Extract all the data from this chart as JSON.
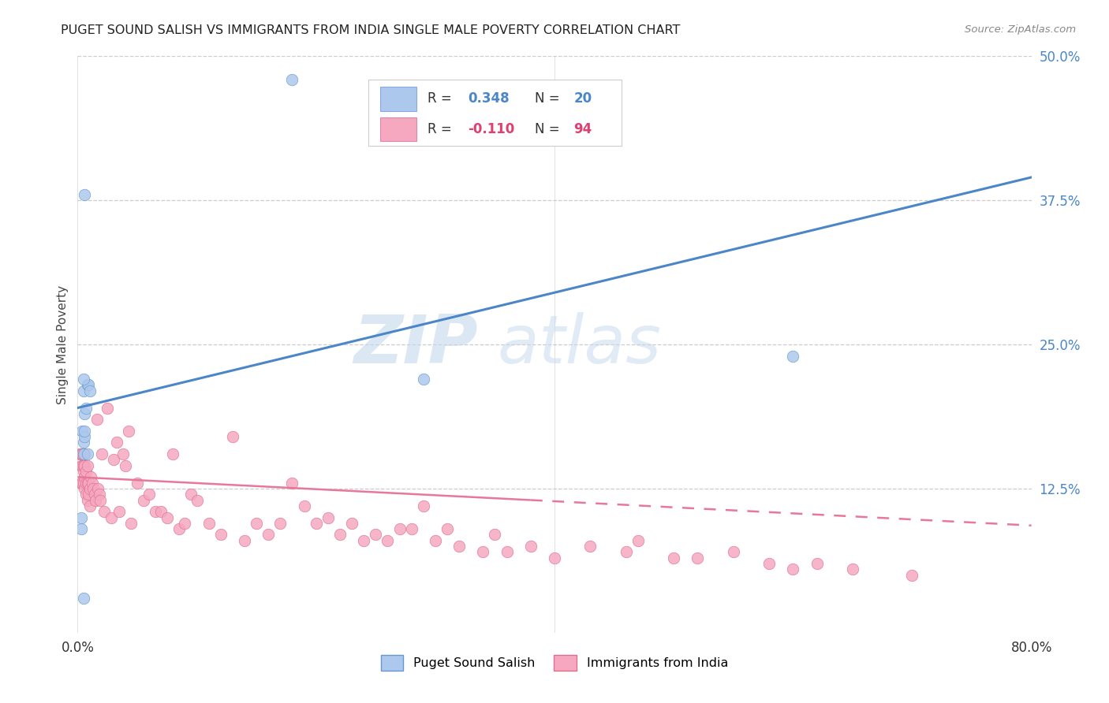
{
  "title": "PUGET SOUND SALISH VS IMMIGRANTS FROM INDIA SINGLE MALE POVERTY CORRELATION CHART",
  "source": "Source: ZipAtlas.com",
  "ylabel": "Single Male Poverty",
  "xlim": [
    0,
    0.8
  ],
  "ylim": [
    0,
    0.5
  ],
  "watermark_zip": "ZIP",
  "watermark_atlas": "atlas",
  "legend1_label": "Puget Sound Salish",
  "legend2_label": "Immigrants from India",
  "series1_color": "#adc8ed",
  "series2_color": "#f5a8c0",
  "line1_color": "#4a86c8",
  "line2_color": "#e8789a",
  "R1": 0.348,
  "N1": 20,
  "R2": -0.11,
  "N2": 94,
  "s1_x": [
    0.003,
    0.004,
    0.005,
    0.005,
    0.005,
    0.006,
    0.006,
    0.006,
    0.007,
    0.008,
    0.008,
    0.009,
    0.01,
    0.003,
    0.005,
    0.006,
    0.18,
    0.29,
    0.6,
    0.005
  ],
  "s1_y": [
    0.09,
    0.175,
    0.155,
    0.165,
    0.21,
    0.17,
    0.19,
    0.38,
    0.195,
    0.155,
    0.215,
    0.215,
    0.21,
    0.1,
    0.03,
    0.175,
    0.48,
    0.22,
    0.24,
    0.22
  ],
  "s2_x": [
    0.002,
    0.003,
    0.003,
    0.003,
    0.004,
    0.004,
    0.004,
    0.005,
    0.005,
    0.005,
    0.005,
    0.006,
    0.006,
    0.006,
    0.006,
    0.007,
    0.007,
    0.007,
    0.008,
    0.008,
    0.008,
    0.009,
    0.009,
    0.01,
    0.01,
    0.011,
    0.012,
    0.013,
    0.014,
    0.015,
    0.016,
    0.017,
    0.018,
    0.019,
    0.02,
    0.022,
    0.025,
    0.028,
    0.03,
    0.033,
    0.035,
    0.038,
    0.04,
    0.043,
    0.045,
    0.05,
    0.055,
    0.06,
    0.065,
    0.07,
    0.075,
    0.08,
    0.085,
    0.09,
    0.095,
    0.1,
    0.11,
    0.12,
    0.13,
    0.14,
    0.15,
    0.16,
    0.17,
    0.18,
    0.19,
    0.2,
    0.21,
    0.22,
    0.23,
    0.24,
    0.25,
    0.26,
    0.27,
    0.28,
    0.29,
    0.3,
    0.31,
    0.32,
    0.34,
    0.35,
    0.36,
    0.38,
    0.4,
    0.43,
    0.46,
    0.47,
    0.5,
    0.52,
    0.55,
    0.58,
    0.6,
    0.62,
    0.65,
    0.7
  ],
  "s2_y": [
    0.155,
    0.145,
    0.13,
    0.155,
    0.13,
    0.145,
    0.155,
    0.13,
    0.14,
    0.145,
    0.155,
    0.125,
    0.135,
    0.145,
    0.155,
    0.12,
    0.13,
    0.14,
    0.115,
    0.13,
    0.145,
    0.12,
    0.13,
    0.11,
    0.125,
    0.135,
    0.13,
    0.125,
    0.12,
    0.115,
    0.185,
    0.125,
    0.12,
    0.115,
    0.155,
    0.105,
    0.195,
    0.1,
    0.15,
    0.165,
    0.105,
    0.155,
    0.145,
    0.175,
    0.095,
    0.13,
    0.115,
    0.12,
    0.105,
    0.105,
    0.1,
    0.155,
    0.09,
    0.095,
    0.12,
    0.115,
    0.095,
    0.085,
    0.17,
    0.08,
    0.095,
    0.085,
    0.095,
    0.13,
    0.11,
    0.095,
    0.1,
    0.085,
    0.095,
    0.08,
    0.085,
    0.08,
    0.09,
    0.09,
    0.11,
    0.08,
    0.09,
    0.075,
    0.07,
    0.085,
    0.07,
    0.075,
    0.065,
    0.075,
    0.07,
    0.08,
    0.065,
    0.065,
    0.07,
    0.06,
    0.055,
    0.06,
    0.055,
    0.05
  ],
  "background_color": "#ffffff",
  "grid_color": "#cccccc",
  "line1_x0": 0.0,
  "line1_y0": 0.195,
  "line1_x1": 0.8,
  "line1_y1": 0.395,
  "line2_x0": 0.0,
  "line2_y0": 0.135,
  "line2_x1": 0.8,
  "line2_y1": 0.093
}
